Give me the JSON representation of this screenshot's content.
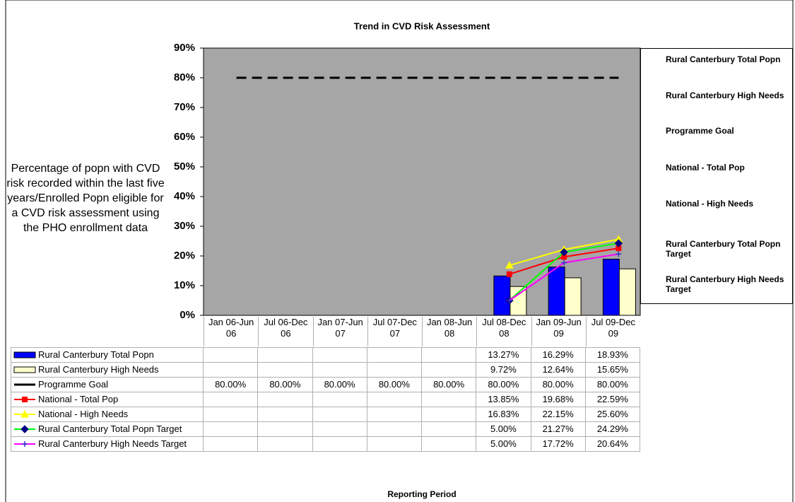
{
  "chart_data": {
    "type": "bar-line",
    "title": "Trend in CVD Risk Assessment",
    "y_label": "Percentage of popn with CVD risk recorded within the last five years/Enrolled Popn eligible for a CVD risk assessment using the PHO enrollment data",
    "x_label": "Reporting Period",
    "categories": [
      "Jan 06-Jun 06",
      "Jul 06-Dec 06",
      "Jan 07-Jun 07",
      "Jul 07-Dec 07",
      "Jan 08-Jun 08",
      "Jul 08-Dec 08",
      "Jan 09-Jun 09",
      "Jul 09-Dec 09"
    ],
    "ylim": [
      0,
      90
    ],
    "yticks": [
      {
        "value": 0,
        "label": "0%"
      },
      {
        "value": 10,
        "label": "10%"
      },
      {
        "value": 20,
        "label": "20%"
      },
      {
        "value": 30,
        "label": "30%"
      },
      {
        "value": 40,
        "label": "40%"
      },
      {
        "value": 50,
        "label": "50%"
      },
      {
        "value": 60,
        "label": "60%"
      },
      {
        "value": 70,
        "label": "70%"
      },
      {
        "value": 80,
        "label": "80%"
      },
      {
        "value": 90,
        "label": "90%"
      }
    ],
    "plot_background": "#a6a6a6",
    "series": [
      {
        "name": "Rural Canterbury Total Popn",
        "kind": "bar",
        "color": "#0000ff",
        "values": [
          null,
          null,
          null,
          null,
          null,
          13.27,
          16.29,
          18.93
        ],
        "value_labels": [
          null,
          null,
          null,
          null,
          null,
          "13.27%",
          "16.29%",
          "18.93%"
        ]
      },
      {
        "name": "Rural Canterbury High Needs",
        "kind": "bar",
        "color": "#ffffcc",
        "values": [
          null,
          null,
          null,
          null,
          null,
          9.72,
          12.64,
          15.65
        ],
        "value_labels": [
          null,
          null,
          null,
          null,
          null,
          "9.72%",
          "12.64%",
          "15.65%"
        ]
      },
      {
        "name": "Programme Goal",
        "kind": "line",
        "color": "#000000",
        "dashed": true,
        "marker": "none",
        "values": [
          80,
          80,
          80,
          80,
          80,
          80,
          80,
          80
        ],
        "value_labels": [
          "80.00%",
          "80.00%",
          "80.00%",
          "80.00%",
          "80.00%",
          "80.00%",
          "80.00%",
          "80.00%"
        ]
      },
      {
        "name": "National - Total Pop",
        "kind": "line",
        "color": "#ff0000",
        "marker": "square",
        "marker_color": "#ff0000",
        "values": [
          null,
          null,
          null,
          null,
          null,
          13.85,
          19.68,
          22.59
        ],
        "value_labels": [
          null,
          null,
          null,
          null,
          null,
          "13.85%",
          "19.68%",
          "22.59%"
        ]
      },
      {
        "name": "National - High Needs",
        "kind": "line",
        "color": "#ffff00",
        "marker": "triangle",
        "marker_color": "#ffff00",
        "values": [
          null,
          null,
          null,
          null,
          null,
          16.83,
          22.15,
          25.6
        ],
        "value_labels": [
          null,
          null,
          null,
          null,
          null,
          "16.83%",
          "22.15%",
          "25.60%"
        ]
      },
      {
        "name": "Rural Canterbury Total Popn Target",
        "kind": "line",
        "color": "#00ff00",
        "marker": "diamond",
        "marker_color": "#000080",
        "values": [
          null,
          null,
          null,
          null,
          null,
          5,
          21.27,
          24.29
        ],
        "value_labels": [
          null,
          null,
          null,
          null,
          null,
          "5.00%",
          "21.27%",
          "24.29%"
        ]
      },
      {
        "name": "Rural Canterbury High Needs Target",
        "kind": "line",
        "color": "#ff00ff",
        "marker": "plus",
        "marker_color": "#3333cc",
        "values": [
          null,
          null,
          null,
          null,
          null,
          5,
          17.72,
          20.64
        ],
        "value_labels": [
          null,
          null,
          null,
          null,
          null,
          "5.00%",
          "17.72%",
          "20.64%"
        ]
      }
    ]
  }
}
